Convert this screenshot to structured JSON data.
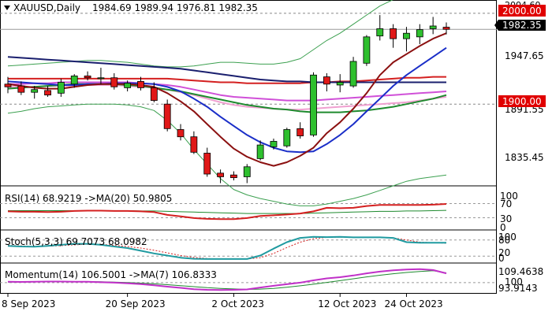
{
  "header": {
    "symbol_label": "XAUUSD,Daily",
    "ohlc_label": "1984.69 1989.94 1976.81 1982.35"
  },
  "colors": {
    "bull_candle": "#2ec02e",
    "bear_candle": "#e01818",
    "ma_maroon": "#8b1010",
    "ma_blue": "#1a2ec8",
    "ma_navy": "#1a1f6e",
    "ma_green": "#1e8a2e",
    "ma_red": "#d42020",
    "ma_magenta": "#d050d8",
    "ma_pink": "#f0a0d0",
    "bollinger": "#3ca050",
    "price_label_bg": "#000000",
    "level_label_bg": "#e00000"
  },
  "price_labels": {
    "level_2000": "2000.00",
    "level_1900": "1900.00",
    "current": "1982.35",
    "tick_2004": "2004.60",
    "tick_1947": "1947.65",
    "tick_1891": "1891.55",
    "tick_1835": "1835.45"
  },
  "rsi": {
    "title": "RSI(14) 68.9219  ->MA(20) 50.9805",
    "tick_100": "100",
    "tick_70": "70",
    "tick_30": "30",
    "tick_0": "0"
  },
  "stoch": {
    "title": "Stoch(5,3,3) 69.7073 68.0982",
    "tick_100": "100",
    "tick_80": "80",
    "tick_20": "20",
    "tick_0": "0"
  },
  "momentum": {
    "title": "Momentum(14) 106.5001  ->MA(7) 106.8333",
    "tick_hi": "109.4638",
    "tick_100": "100",
    "tick_lo": "93.9143"
  },
  "x_axis": {
    "labels": [
      "8 Sep 2023",
      "20 Sep 2023",
      "2 Oct 2023",
      "12 Oct 2023",
      "24 Oct 2023"
    ]
  },
  "chart_data": {
    "type": "candlestick",
    "title": "XAUUSD,Daily",
    "ylim": [
      1810,
      2012
    ],
    "horizontal_levels": [
      2000,
      1900
    ],
    "candles": [
      {
        "o": 1922,
        "h": 1930,
        "l": 1912,
        "c": 1919
      },
      {
        "o": 1920,
        "h": 1925,
        "l": 1910,
        "c": 1913
      },
      {
        "o": 1913,
        "h": 1920,
        "l": 1906,
        "c": 1916
      },
      {
        "o": 1915,
        "h": 1920,
        "l": 1908,
        "c": 1910
      },
      {
        "o": 1912,
        "h": 1928,
        "l": 1908,
        "c": 1924
      },
      {
        "o": 1922,
        "h": 1933,
        "l": 1918,
        "c": 1931
      },
      {
        "o": 1931,
        "h": 1936,
        "l": 1926,
        "c": 1929
      },
      {
        "o": 1928,
        "h": 1940,
        "l": 1922,
        "c": 1929
      },
      {
        "o": 1929,
        "h": 1934,
        "l": 1916,
        "c": 1919
      },
      {
        "o": 1918,
        "h": 1926,
        "l": 1914,
        "c": 1923
      },
      {
        "o": 1925,
        "h": 1930,
        "l": 1915,
        "c": 1918
      },
      {
        "o": 1918,
        "h": 1924,
        "l": 1902,
        "c": 1904
      },
      {
        "o": 1900,
        "h": 1905,
        "l": 1870,
        "c": 1873
      },
      {
        "o": 1872,
        "h": 1878,
        "l": 1860,
        "c": 1864
      },
      {
        "o": 1864,
        "h": 1870,
        "l": 1845,
        "c": 1847
      },
      {
        "o": 1846,
        "h": 1852,
        "l": 1820,
        "c": 1823
      },
      {
        "o": 1824,
        "h": 1828,
        "l": 1813,
        "c": 1820
      },
      {
        "o": 1822,
        "h": 1826,
        "l": 1816,
        "c": 1819
      },
      {
        "o": 1820,
        "h": 1834,
        "l": 1813,
        "c": 1831
      },
      {
        "o": 1840,
        "h": 1860,
        "l": 1838,
        "c": 1855
      },
      {
        "o": 1853,
        "h": 1862,
        "l": 1850,
        "c": 1859
      },
      {
        "o": 1854,
        "h": 1874,
        "l": 1852,
        "c": 1872
      },
      {
        "o": 1873,
        "h": 1880,
        "l": 1862,
        "c": 1865
      },
      {
        "o": 1866,
        "h": 1935,
        "l": 1864,
        "c": 1932
      },
      {
        "o": 1930,
        "h": 1934,
        "l": 1914,
        "c": 1922
      },
      {
        "o": 1921,
        "h": 1933,
        "l": 1913,
        "c": 1924
      },
      {
        "o": 1920,
        "h": 1952,
        "l": 1918,
        "c": 1947
      },
      {
        "o": 1945,
        "h": 1976,
        "l": 1942,
        "c": 1974
      },
      {
        "o": 1975,
        "h": 1998,
        "l": 1970,
        "c": 1983
      },
      {
        "o": 1983,
        "h": 1988,
        "l": 1962,
        "c": 1972
      },
      {
        "o": 1972,
        "h": 1985,
        "l": 1958,
        "c": 1978
      },
      {
        "o": 1974,
        "h": 1988,
        "l": 1966,
        "c": 1982
      },
      {
        "o": 1983,
        "h": 1996,
        "l": 1977,
        "c": 1986
      },
      {
        "o": 1984.69,
        "h": 1989.94,
        "l": 1976.81,
        "c": 1982.35
      }
    ],
    "indicators": {
      "ma_maroon": [
        1922,
        1920,
        1918,
        1917,
        1917,
        1919,
        1921,
        1922,
        1922,
        1922,
        1921,
        1919,
        1912,
        1903,
        1892,
        1878,
        1864,
        1851,
        1842,
        1836,
        1832,
        1836,
        1843,
        1852,
        1868,
        1880,
        1895,
        1912,
        1932,
        1946,
        1955,
        1964,
        1972,
        1978
      ],
      "ma_blue": [
        1925,
        1924,
        1923,
        1922,
        1921,
        1921,
        1922,
        1922,
        1923,
        1923,
        1923,
        1922,
        1919,
        1914,
        1906,
        1897,
        1886,
        1876,
        1866,
        1858,
        1852,
        1848,
        1847,
        1848,
        1856,
        1866,
        1878,
        1892,
        1906,
        1920,
        1932,
        1942,
        1952,
        1962
      ],
      "ma_navy": [
        1952,
        1951,
        1950,
        1949,
        1948,
        1947,
        1946,
        1945,
        1944,
        1943,
        1942,
        1941,
        1940,
        1939,
        1937,
        1935,
        1933,
        1931,
        1929,
        1927,
        1926,
        1925,
        1925,
        1924,
        1924,
        1924,
        1924,
        1924,
        1924,
        1924,
        1924,
        1924,
        1924,
        1924
      ],
      "ma_red": [
        1928,
        1928,
        1928,
        1928,
        1928,
        1928,
        1928,
        1928,
        1928,
        1928,
        1928,
        1928,
        1928,
        1927,
        1926,
        1925,
        1924,
        1924,
        1923,
        1923,
        1923,
        1923,
        1923,
        1924,
        1924,
        1925,
        1925,
        1926,
        1927,
        1928,
        1929,
        1929,
        1930,
        1930
      ],
      "ma_magenta": [
        1922,
        1922,
        1923,
        1923,
        1924,
        1924,
        1924,
        1924,
        1924,
        1924,
        1923,
        1922,
        1921,
        1919,
        1916,
        1913,
        1910,
        1908,
        1907,
        1906,
        1905,
        1904,
        1904,
        1904,
        1905,
        1906,
        1907,
        1908,
        1909,
        1910,
        1911,
        1912,
        1913,
        1914
      ],
      "ma_pink": [
        1919,
        1919,
        1919,
        1920,
        1920,
        1920,
        1921,
        1921,
        1921,
        1920,
        1919,
        1918,
        1916,
        1913,
        1910,
        1906,
        1902,
        1899,
        1897,
        1896,
        1895,
        1894,
        1894,
        1895,
        1896,
        1897,
        1898,
        1899,
        1900,
        1901,
        1902,
        1904,
        1906,
        1908
      ],
      "ma_green": [
        1917,
        1918,
        1919,
        1920,
        1921,
        1922,
        1922,
        1922,
        1922,
        1921,
        1920,
        1918,
        1916,
        1914,
        1911,
        1908,
        1905,
        1902,
        1899,
        1897,
        1895,
        1894,
        1892,
        1891,
        1891,
        1891,
        1892,
        1893,
        1895,
        1897,
        1900,
        1903,
        1906,
        1910
      ],
      "bb_upper": [
        1942,
        1943,
        1944,
        1945,
        1946,
        1947,
        1948,
        1948,
        1947,
        1946,
        1944,
        1942,
        1941,
        1941,
        1942,
        1944,
        1946,
        1946,
        1945,
        1944,
        1944,
        1946,
        1950,
        1960,
        1970,
        1978,
        1988,
        1998,
        2008,
        2015,
        2022,
        2030,
        2038,
        2046
      ],
      "bb_lower": [
        1890,
        1892,
        1895,
        1897,
        1898,
        1899,
        1900,
        1900,
        1900,
        1899,
        1897,
        1893,
        1882,
        1868,
        1850,
        1834,
        1818,
        1806,
        1800,
        1796,
        1793,
        1790,
        1788,
        1788,
        1790,
        1793,
        1796,
        1800,
        1805,
        1810,
        1815,
        1818,
        1820,
        1822
      ]
    },
    "rsi_series": [
      48,
      47,
      47,
      46,
      47,
      49,
      50,
      50,
      49,
      49,
      48,
      46,
      38,
      34,
      29,
      27,
      26,
      26,
      29,
      35,
      37,
      39,
      42,
      48,
      58,
      57,
      58,
      63,
      66,
      66,
      66,
      66,
      67,
      68.92
    ],
    "rsi_ma_series": [
      50,
      50,
      50,
      50,
      50,
      50,
      50,
      50,
      50,
      50,
      49,
      49,
      48,
      47,
      46,
      45,
      44,
      43,
      42,
      42,
      42,
      42,
      42,
      43,
      44,
      45,
      46,
      47,
      48,
      48,
      49,
      49,
      50,
      50.98
    ],
    "stoch_k": [
      58,
      56,
      55,
      58,
      62,
      66,
      66,
      62,
      56,
      50,
      40,
      30,
      22,
      14,
      10,
      9,
      9,
      9,
      9,
      22,
      48,
      72,
      88,
      92,
      91,
      92,
      90,
      90,
      90,
      88,
      72,
      70,
      70,
      69.71
    ],
    "stoch_d": [
      60,
      58,
      56,
      57,
      59,
      62,
      64,
      64,
      60,
      56,
      50,
      42,
      32,
      22,
      15,
      11,
      9,
      9,
      9,
      14,
      30,
      52,
      72,
      85,
      90,
      91,
      90,
      90,
      90,
      88,
      80,
      72,
      70,
      68.1
    ],
    "momentum_series": [
      100.6,
      100.5,
      100.7,
      100.8,
      100.8,
      100.7,
      100.6,
      100.3,
      100.0,
      99.6,
      99.0,
      98.2,
      97.2,
      96.4,
      95.4,
      95.0,
      94.9,
      95.0,
      95.3,
      96.6,
      97.8,
      98.9,
      100.0,
      101.6,
      103.0,
      103.8,
      105.0,
      106.5,
      107.7,
      108.6,
      109.2,
      109.4,
      108.8,
      106.5
    ],
    "momentum_ma_series": [
      100.4,
      100.4,
      100.5,
      100.6,
      100.6,
      100.7,
      100.7,
      100.6,
      100.4,
      100.1,
      99.7,
      99.2,
      98.6,
      97.9,
      97.2,
      96.5,
      96.0,
      95.6,
      95.3,
      95.5,
      96.0,
      96.8,
      97.8,
      98.9,
      100.2,
      101.4,
      102.7,
      104.0,
      105.2,
      106.2,
      107.1,
      107.8,
      108.3,
      106.83
    ]
  }
}
